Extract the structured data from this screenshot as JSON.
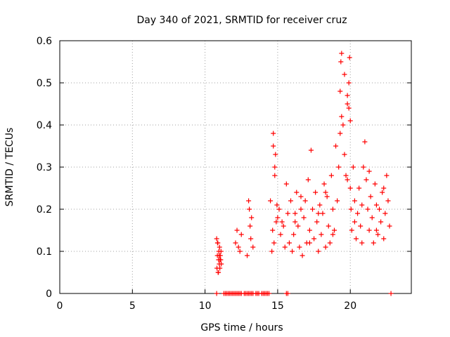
{
  "chart_data": {
    "type": "scatter",
    "title": "Day 340 of 2021, SRMTID for receiver cruz",
    "xlabel": "GPS time / hours",
    "ylabel": "SRMTID / TECUs",
    "xlim": [
      0,
      24.2
    ],
    "ylim": [
      0,
      0.6
    ],
    "x_ticks": [
      0,
      5,
      10,
      15,
      20
    ],
    "x_tick_labels": [
      "0",
      "5",
      "10",
      "15",
      "20"
    ],
    "y_ticks": [
      0,
      0.1,
      0.2,
      0.3,
      0.4,
      0.5,
      0.6
    ],
    "y_tick_labels": [
      "0",
      "0.1",
      "0.2",
      "0.3",
      "0.4",
      "0.5",
      "0.6"
    ],
    "grid": true,
    "marker": "+",
    "series": [
      {
        "name": "SRMTID",
        "color": "#ff0000",
        "x": [
          10.8,
          10.82,
          10.85,
          10.88,
          10.9,
          10.93,
          10.95,
          10.98,
          11.0,
          11.02,
          11.05,
          11.08,
          11.1,
          11.12,
          10.86,
          10.92,
          10.97,
          11.03,
          12.1,
          12.2,
          12.3,
          12.4,
          12.5,
          12.9,
          13.0,
          13.05,
          13.1,
          13.15,
          13.2,
          13.3,
          14.5,
          14.6,
          14.65,
          14.7,
          14.75,
          14.8,
          14.85,
          14.9,
          14.95,
          15.0,
          15.1,
          15.2,
          15.3,
          15.4,
          15.5,
          15.6,
          15.7,
          15.8,
          15.9,
          16.0,
          16.1,
          16.2,
          16.3,
          16.4,
          16.5,
          16.6,
          16.7,
          16.8,
          16.9,
          17.0,
          17.1,
          17.2,
          17.3,
          17.4,
          17.5,
          17.6,
          17.7,
          17.8,
          17.9,
          18.0,
          18.1,
          18.2,
          18.3,
          18.4,
          18.5,
          18.6,
          18.7,
          18.8,
          18.9,
          19.0,
          19.1,
          19.2,
          19.3,
          19.35,
          19.4,
          19.5,
          19.6,
          19.7,
          19.8,
          19.9,
          19.95,
          20.0,
          20.05,
          20.1,
          20.2,
          20.3,
          20.4,
          20.5,
          20.6,
          20.7,
          20.8,
          20.9,
          21.0,
          21.1,
          21.2,
          21.3,
          21.4,
          21.5,
          21.6,
          21.7,
          21.8,
          21.9,
          22.0,
          22.1,
          22.2,
          22.3,
          22.4,
          22.5,
          22.6,
          22.7,
          16.2,
          16.6,
          17.2,
          17.8,
          18.3,
          18.8,
          19.3,
          19.8,
          20.3,
          20.8,
          21.3,
          21.8,
          22.3,
          14.7,
          14.8,
          19.4,
          19.6,
          19.8,
          19.9,
          20.0
        ],
        "y": [
          0.13,
          0.06,
          0.09,
          0.12,
          0.05,
          0.08,
          0.1,
          0.07,
          0.11,
          0.06,
          0.09,
          0.08,
          0.1,
          0.07,
          0.12,
          0.05,
          0.09,
          0.08,
          0.12,
          0.15,
          0.11,
          0.1,
          0.14,
          0.09,
          0.22,
          0.2,
          0.16,
          0.13,
          0.18,
          0.11,
          0.22,
          0.1,
          0.15,
          0.35,
          0.12,
          0.28,
          0.33,
          0.17,
          0.21,
          0.18,
          0.2,
          0.14,
          0.17,
          0.16,
          0.11,
          0.26,
          0.19,
          0.12,
          0.22,
          0.1,
          0.14,
          0.19,
          0.24,
          0.16,
          0.11,
          0.2,
          0.09,
          0.18,
          0.22,
          0.12,
          0.27,
          0.15,
          0.34,
          0.2,
          0.13,
          0.24,
          0.17,
          0.1,
          0.21,
          0.14,
          0.19,
          0.26,
          0.11,
          0.23,
          0.16,
          0.12,
          0.28,
          0.2,
          0.15,
          0.35,
          0.22,
          0.3,
          0.48,
          0.55,
          0.42,
          0.4,
          0.33,
          0.28,
          0.45,
          0.5,
          0.56,
          0.25,
          0.2,
          0.15,
          0.3,
          0.22,
          0.13,
          0.19,
          0.25,
          0.16,
          0.12,
          0.3,
          0.36,
          0.27,
          0.2,
          0.15,
          0.23,
          0.18,
          0.12,
          0.26,
          0.21,
          0.14,
          0.2,
          0.17,
          0.24,
          0.13,
          0.19,
          0.28,
          0.22,
          0.16,
          0.17,
          0.23,
          0.12,
          0.19,
          0.24,
          0.14,
          0.38,
          0.27,
          0.17,
          0.21,
          0.29,
          0.15,
          0.25,
          0.38,
          0.3,
          0.57,
          0.52,
          0.47,
          0.44,
          0.41
        ],
        "zero_values_x": [
          10.8,
          11.3,
          11.4,
          11.5,
          11.6,
          11.7,
          11.8,
          11.9,
          12.0,
          12.1,
          12.2,
          12.3,
          12.4,
          12.5,
          12.7,
          12.8,
          12.9,
          13.0,
          13.1,
          13.2,
          13.3,
          13.5,
          13.6,
          13.7,
          13.9,
          14.0,
          14.1,
          14.2,
          14.3,
          14.4,
          15.6,
          15.7,
          22.8
        ]
      }
    ]
  }
}
